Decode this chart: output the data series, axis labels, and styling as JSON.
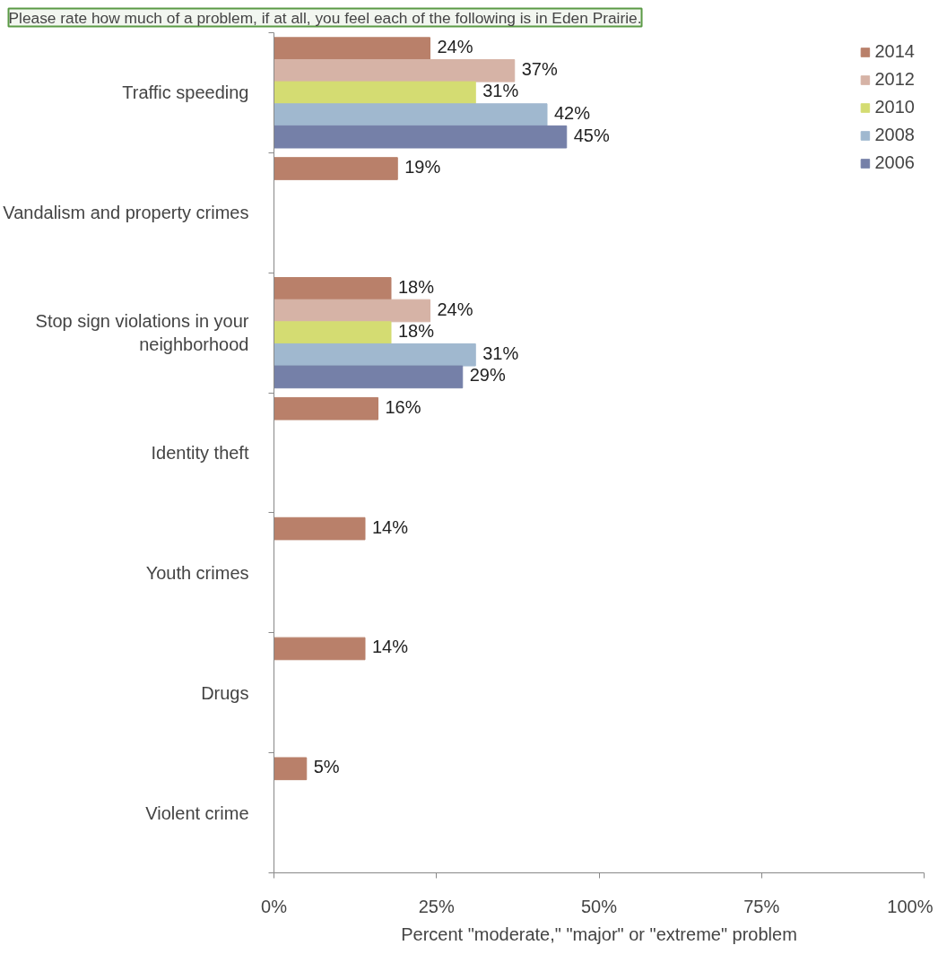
{
  "chart_data": {
    "type": "bar",
    "orientation": "horizontal",
    "title": "Please rate how much of a problem, if at all, you feel each of the following is in Eden Prairie.",
    "xlabel": "Percent \"moderate,\" \"major\" or \"extreme\" problem",
    "categories": [
      "Traffic speeding",
      "Vandalism and property crimes",
      "Stop sign violations in your neighborhood",
      "Identity theft",
      "Youth crimes",
      "Drugs",
      "Violent crime"
    ],
    "series": [
      {
        "name": "2014",
        "color": "#b9806a",
        "values": [
          24,
          19,
          18,
          16,
          14,
          14,
          5
        ],
        "value_labels": [
          "24%",
          "19%",
          "18%",
          "16%",
          "14%",
          "14%",
          "5%"
        ]
      },
      {
        "name": "2012",
        "color": "#d6b3a6",
        "values": [
          37,
          null,
          24,
          null,
          null,
          null,
          null
        ],
        "value_labels": [
          "37%",
          null,
          "24%",
          null,
          null,
          null,
          null
        ]
      },
      {
        "name": "2010",
        "color": "#d4dc72",
        "values": [
          31,
          null,
          18,
          null,
          null,
          null,
          null
        ],
        "value_labels": [
          "31%",
          null,
          "18%",
          null,
          null,
          null,
          null
        ]
      },
      {
        "name": "2008",
        "color": "#a0b8cf",
        "values": [
          42,
          null,
          31,
          null,
          null,
          null,
          null
        ],
        "value_labels": [
          "42%",
          null,
          "31%",
          null,
          null,
          null,
          null
        ]
      },
      {
        "name": "2006",
        "color": "#7580a8",
        "values": [
          45,
          null,
          29,
          null,
          null,
          null,
          null
        ],
        "value_labels": [
          "45%",
          null,
          "29%",
          null,
          null,
          null,
          null
        ]
      }
    ],
    "xlim": [
      0,
      100
    ],
    "xticks": [
      {
        "value": 0,
        "label": "0%"
      },
      {
        "value": 25,
        "label": "25%"
      },
      {
        "value": 50,
        "label": "50%"
      },
      {
        "value": 75,
        "label": "75%"
      },
      {
        "value": 100,
        "label": "100%"
      }
    ],
    "legend": "top right",
    "grid": false
  }
}
